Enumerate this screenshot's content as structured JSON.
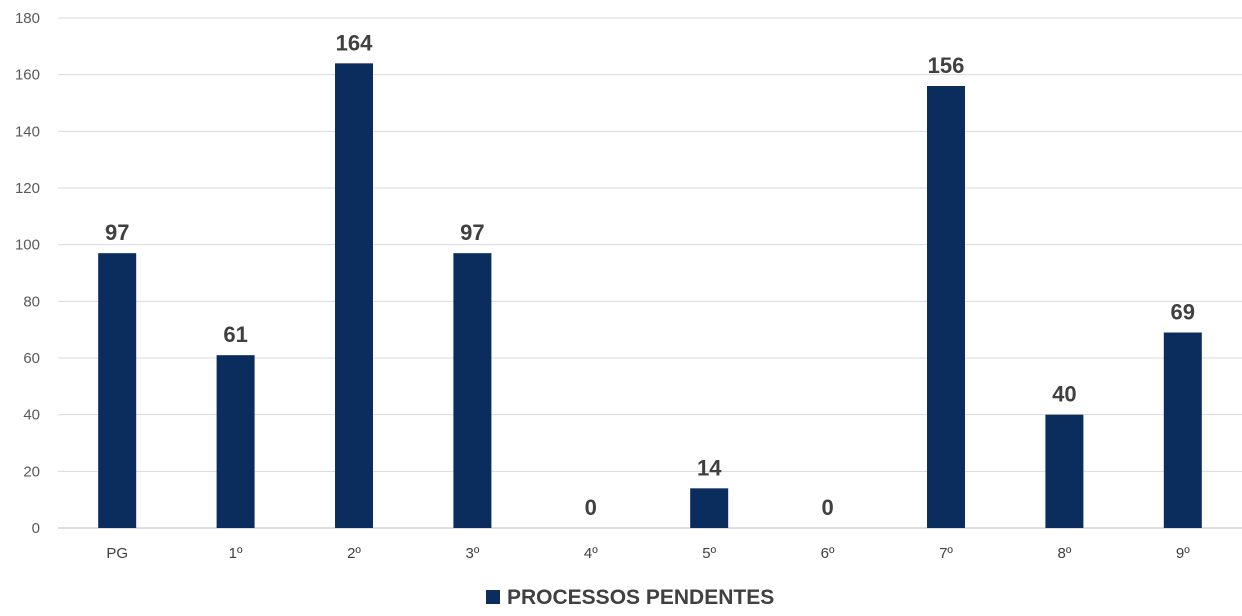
{
  "chart_data": {
    "type": "bar",
    "categories": [
      "PG",
      "1º",
      "2º",
      "3º",
      "4º",
      "5º",
      "6º",
      "7º",
      "8º",
      "9º"
    ],
    "series": [
      {
        "name": "PROCESSOS PENDENTES",
        "values": [
          97,
          61,
          164,
          97,
          0,
          14,
          0,
          156,
          40,
          69
        ],
        "color": "#0a2d5e"
      }
    ],
    "ylim": [
      0,
      180
    ],
    "yticks": [
      0,
      20,
      40,
      60,
      80,
      100,
      120,
      140,
      160,
      180
    ],
    "grid": true,
    "data_labels": true,
    "legend_position": "bottom",
    "title": "",
    "xlabel": "",
    "ylabel": ""
  }
}
